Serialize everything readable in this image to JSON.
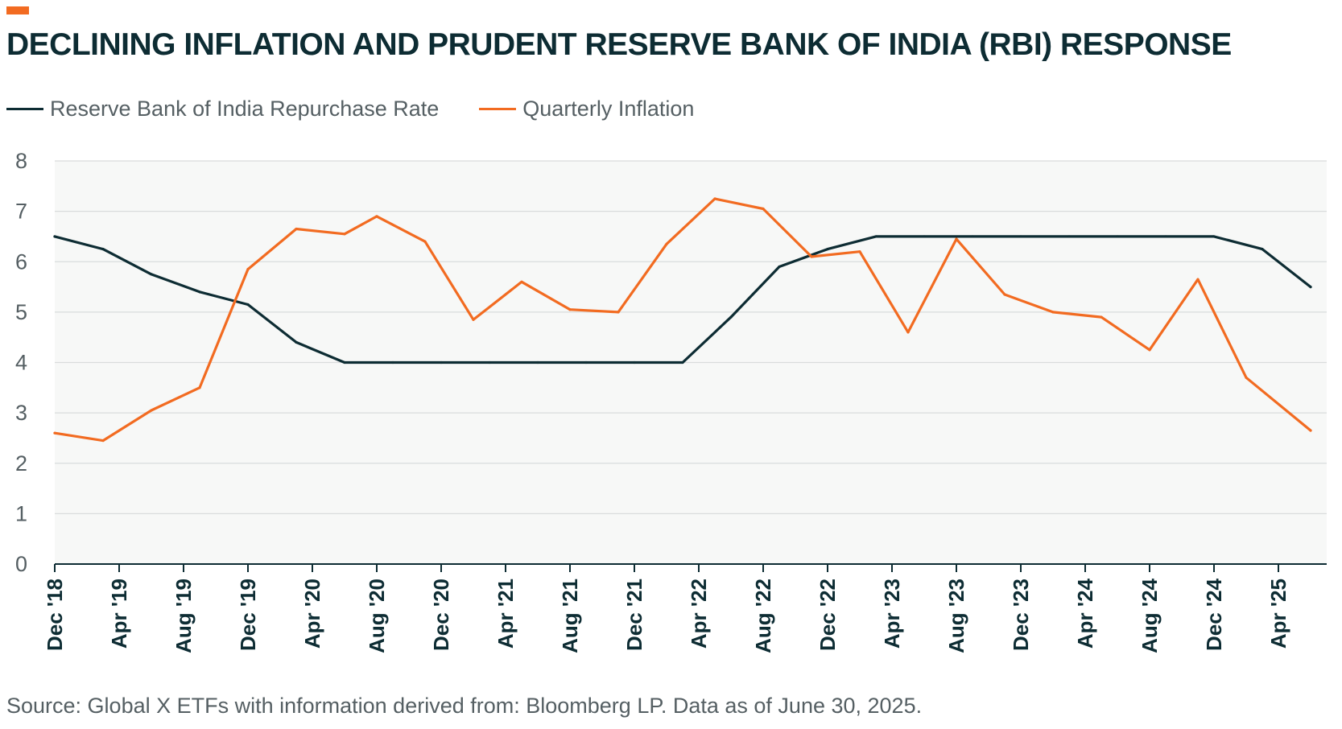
{
  "header": {
    "title": "DECLINING INFLATION AND PRUDENT RESERVE BANK OF INDIA (RBI) RESPONSE",
    "accent_color": "#f26b21"
  },
  "legend": {
    "items": [
      {
        "label": "Reserve Bank of India Repurchase Rate",
        "color": "#0d2c33"
      },
      {
        "label": "Quarterly Inflation",
        "color": "#f26b21"
      }
    ]
  },
  "footer": {
    "source": "Source: Global X ETFs with information derived from: Bloomberg LP. Data as of June 30, 2025."
  },
  "chart_data": {
    "type": "line",
    "title": "DECLINING INFLATION AND PRUDENT RESERVE BANK OF INDIA (RBI) RESPONSE",
    "xlabel": "",
    "ylabel": "",
    "ylim": [
      0,
      8
    ],
    "yticks": [
      0,
      1,
      2,
      3,
      4,
      5,
      6,
      7,
      8
    ],
    "xlim": [
      "2018-12",
      "2025-06"
    ],
    "xticks": [
      "Dec '18",
      "Apr '19",
      "Aug '19",
      "Dec '19",
      "Apr '20",
      "Aug '20",
      "Dec '20",
      "Apr '21",
      "Aug '21",
      "Dec '21",
      "Apr '22",
      "Aug '22",
      "Dec '22",
      "Apr '23",
      "Aug '23",
      "Dec '23",
      "Apr '24",
      "Aug '24",
      "Dec '24",
      "Apr '25"
    ],
    "grid": true,
    "legend_position": "top-left",
    "series": [
      {
        "name": "Reserve Bank of India Repurchase Rate",
        "color": "#0d2c33",
        "points": [
          {
            "x": "2018-12",
            "y": 6.5
          },
          {
            "x": "2019-03",
            "y": 6.25
          },
          {
            "x": "2019-06",
            "y": 5.75
          },
          {
            "x": "2019-09",
            "y": 5.4
          },
          {
            "x": "2019-12",
            "y": 5.15
          },
          {
            "x": "2020-03",
            "y": 4.4
          },
          {
            "x": "2020-06",
            "y": 4.0
          },
          {
            "x": "2020-09",
            "y": 4.0
          },
          {
            "x": "2020-12",
            "y": 4.0
          },
          {
            "x": "2021-03",
            "y": 4.0
          },
          {
            "x": "2021-06",
            "y": 4.0
          },
          {
            "x": "2021-09",
            "y": 4.0
          },
          {
            "x": "2021-12",
            "y": 4.0
          },
          {
            "x": "2022-03",
            "y": 4.0
          },
          {
            "x": "2022-06",
            "y": 4.9
          },
          {
            "x": "2022-09",
            "y": 5.9
          },
          {
            "x": "2022-12",
            "y": 6.25
          },
          {
            "x": "2023-03",
            "y": 6.5
          },
          {
            "x": "2023-06",
            "y": 6.5
          },
          {
            "x": "2023-09",
            "y": 6.5
          },
          {
            "x": "2023-12",
            "y": 6.5
          },
          {
            "x": "2024-03",
            "y": 6.5
          },
          {
            "x": "2024-06",
            "y": 6.5
          },
          {
            "x": "2024-09",
            "y": 6.5
          },
          {
            "x": "2024-12",
            "y": 6.5
          },
          {
            "x": "2025-03",
            "y": 6.25
          },
          {
            "x": "2025-06",
            "y": 5.5
          }
        ]
      },
      {
        "name": "Quarterly Inflation",
        "color": "#f26b21",
        "points": [
          {
            "x": "2018-12",
            "y": 2.6
          },
          {
            "x": "2019-03",
            "y": 2.45
          },
          {
            "x": "2019-06",
            "y": 3.05
          },
          {
            "x": "2019-09",
            "y": 3.5
          },
          {
            "x": "2019-12",
            "y": 5.85
          },
          {
            "x": "2020-03",
            "y": 6.65
          },
          {
            "x": "2020-06",
            "y": 6.55
          },
          {
            "x": "2020-08",
            "y": 6.9
          },
          {
            "x": "2020-11",
            "y": 6.4
          },
          {
            "x": "2021-02",
            "y": 4.85
          },
          {
            "x": "2021-05",
            "y": 5.6
          },
          {
            "x": "2021-08",
            "y": 5.05
          },
          {
            "x": "2021-11",
            "y": 5.0
          },
          {
            "x": "2022-02",
            "y": 6.35
          },
          {
            "x": "2022-05",
            "y": 7.25
          },
          {
            "x": "2022-08",
            "y": 7.05
          },
          {
            "x": "2022-11",
            "y": 6.1
          },
          {
            "x": "2023-02",
            "y": 6.2
          },
          {
            "x": "2023-05",
            "y": 4.6
          },
          {
            "x": "2023-08",
            "y": 6.45
          },
          {
            "x": "2023-11",
            "y": 5.35
          },
          {
            "x": "2024-02",
            "y": 5.0
          },
          {
            "x": "2024-05",
            "y": 4.9
          },
          {
            "x": "2024-08",
            "y": 4.25
          },
          {
            "x": "2024-11",
            "y": 5.65
          },
          {
            "x": "2025-02",
            "y": 3.7
          },
          {
            "x": "2025-06",
            "y": 2.65
          }
        ]
      }
    ]
  }
}
